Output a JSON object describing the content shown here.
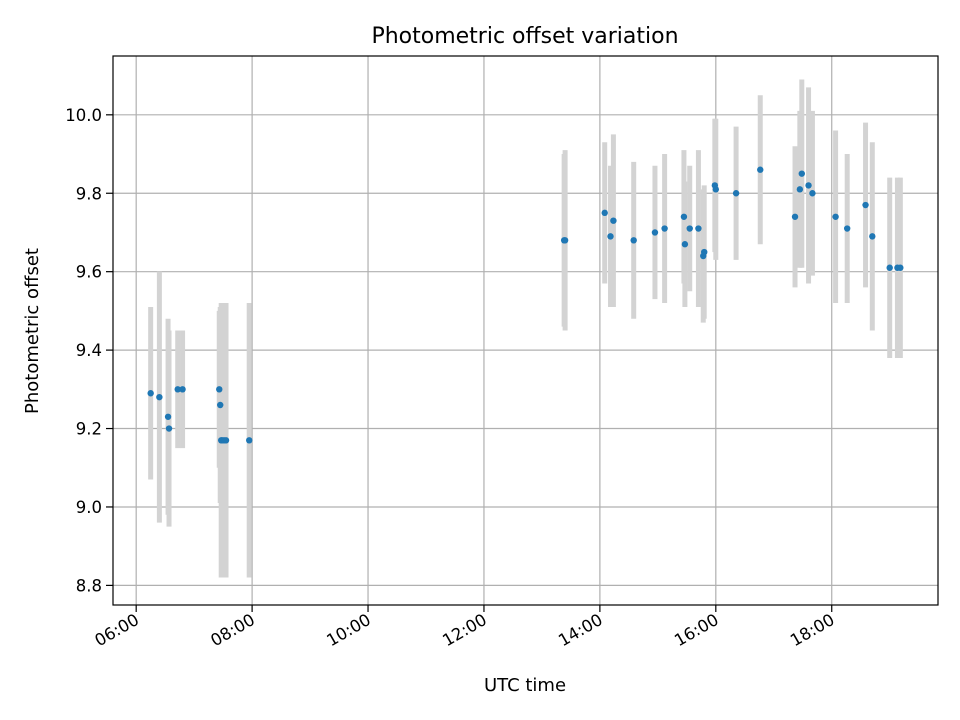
{
  "chart_data": {
    "type": "scatter",
    "title": "Photometric offset variation",
    "xlabel": "UTC time",
    "ylabel": "Photometric offset",
    "grid": true,
    "xlim": [
      "05:36",
      "19:50"
    ],
    "ylim": [
      8.75,
      10.15
    ],
    "x_ticks": [
      "06:00",
      "08:00",
      "10:00",
      "12:00",
      "14:00",
      "16:00",
      "18:00"
    ],
    "y_ticks": [
      "8.8",
      "9.0",
      "9.2",
      "9.4",
      "9.6",
      "9.8",
      "10.0"
    ],
    "colors": {
      "marker": "#1f77b4",
      "errorbar": "#d3d3d3",
      "grid": "#b0b0b0"
    },
    "series": [
      {
        "x": [
          "06:15",
          "06:24",
          "06:33",
          "06:34",
          "06:43",
          "06:48",
          "07:26",
          "07:27",
          "07:28",
          "07:29",
          "07:31",
          "07:33",
          "07:57",
          "13:23",
          "13:24",
          "14:05",
          "14:11",
          "14:14",
          "14:35",
          "14:57",
          "15:07",
          "15:27",
          "15:28",
          "15:33",
          "15:42",
          "15:47",
          "15:48",
          "15:59",
          "16:00",
          "16:21",
          "16:46",
          "17:22",
          "17:27",
          "17:29",
          "17:36",
          "17:40",
          "18:04",
          "18:16",
          "18:35",
          "18:42",
          "19:00",
          "19:08",
          "19:11"
        ],
        "y": [
          9.29,
          9.28,
          9.23,
          9.2,
          9.3,
          9.3,
          9.3,
          9.26,
          9.17,
          9.17,
          9.17,
          9.17,
          9.17,
          9.68,
          9.68,
          9.75,
          9.69,
          9.73,
          9.68,
          9.7,
          9.71,
          9.74,
          9.67,
          9.71,
          9.71,
          9.64,
          9.65,
          9.82,
          9.81,
          9.8,
          9.86,
          9.74,
          9.81,
          9.85,
          9.82,
          9.8,
          9.74,
          9.71,
          9.77,
          9.69,
          9.61,
          9.61,
          9.61
        ],
        "yerr": [
          0.22,
          0.32,
          0.25,
          0.25,
          0.15,
          0.15,
          0.2,
          0.25,
          0.35,
          0.35,
          0.35,
          0.35,
          0.35,
          0.22,
          0.23,
          0.18,
          0.18,
          0.22,
          0.2,
          0.17,
          0.19,
          0.17,
          0.16,
          0.16,
          0.2,
          0.17,
          0.17,
          0.17,
          0.18,
          0.17,
          0.19,
          0.18,
          0.2,
          0.24,
          0.25,
          0.21,
          0.22,
          0.19,
          0.21,
          0.24,
          0.23,
          0.23,
          0.23
        ]
      }
    ]
  }
}
